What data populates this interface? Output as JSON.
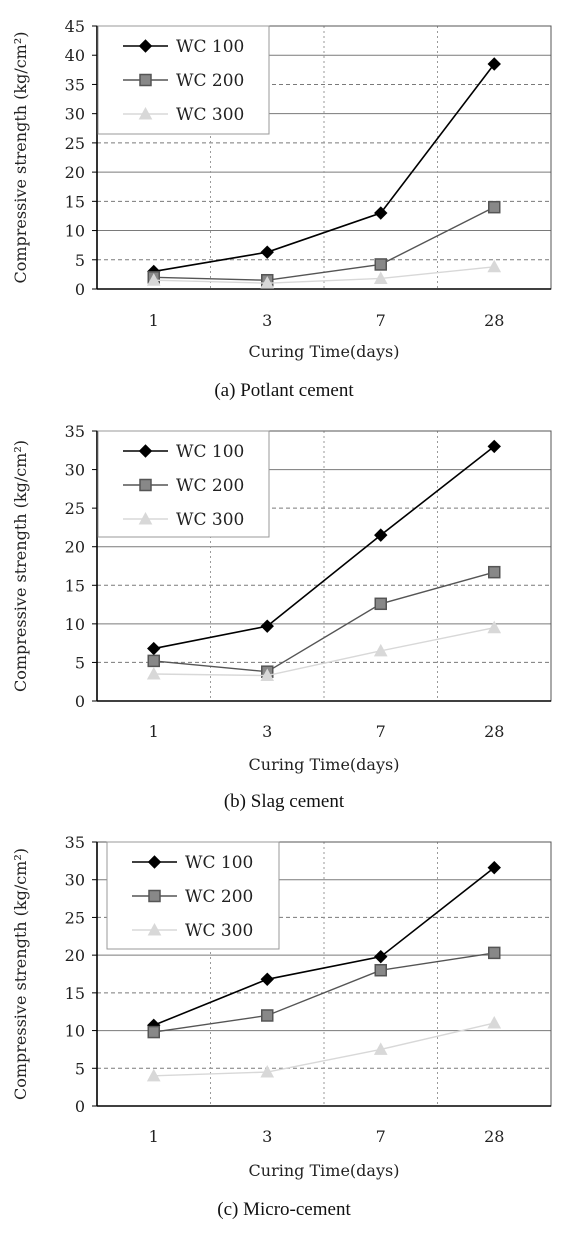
{
  "chart_data": [
    {
      "type": "line",
      "caption": "(a) Potlant cement",
      "xlabel": "Curing Time(days)",
      "ylabel": "Compressive strength (kg/cm²)",
      "categories": [
        "1",
        "3",
        "7",
        "28"
      ],
      "ylim": [
        0,
        45
      ],
      "yticks": [
        0,
        5,
        10,
        15,
        20,
        25,
        30,
        35,
        40,
        45
      ],
      "grid": true,
      "legend_position": "top-left",
      "series": [
        {
          "name": "WC 100",
          "marker": "diamond",
          "color": "#000000",
          "values": [
            3,
            6.3,
            13,
            38.5
          ]
        },
        {
          "name": "WC 200",
          "marker": "square",
          "color": "#555555",
          "values": [
            2,
            1.5,
            4.2,
            14
          ]
        },
        {
          "name": "WC 300",
          "marker": "triangle",
          "color": "#d8d8d8",
          "values": [
            1.5,
            1,
            1.8,
            3.8
          ]
        }
      ]
    },
    {
      "type": "line",
      "caption": "(b) Slag cement",
      "xlabel": "Curing Time(days)",
      "ylabel": "Compressive strength (kg/cm²)",
      "categories": [
        "1",
        "3",
        "7",
        "28"
      ],
      "ylim": [
        0,
        35
      ],
      "yticks": [
        0,
        5,
        10,
        15,
        20,
        25,
        30,
        35
      ],
      "grid": true,
      "legend_position": "top-left",
      "series": [
        {
          "name": "WC 100",
          "marker": "diamond",
          "color": "#000000",
          "values": [
            6.8,
            9.7,
            21.5,
            33
          ]
        },
        {
          "name": "WC 200",
          "marker": "square",
          "color": "#555555",
          "values": [
            5.2,
            3.8,
            12.6,
            16.7
          ]
        },
        {
          "name": "WC 300",
          "marker": "triangle",
          "color": "#d8d8d8",
          "values": [
            3.5,
            3.3,
            6.5,
            9.5
          ]
        }
      ]
    },
    {
      "type": "line",
      "caption": "(c) Micro-cement",
      "xlabel": "Curing Time(days)",
      "ylabel": "Compressive strength (kg/cm²)",
      "categories": [
        "1",
        "3",
        "7",
        "28"
      ],
      "ylim": [
        0,
        35
      ],
      "yticks": [
        0,
        5,
        10,
        15,
        20,
        25,
        30,
        35
      ],
      "grid": true,
      "legend_position": "top-left",
      "series": [
        {
          "name": "WC 100",
          "marker": "diamond",
          "color": "#000000",
          "values": [
            10.7,
            16.8,
            19.8,
            31.6
          ]
        },
        {
          "name": "WC 200",
          "marker": "square",
          "color": "#555555",
          "values": [
            9.8,
            12,
            18,
            20.3
          ]
        },
        {
          "name": "WC 300",
          "marker": "triangle",
          "color": "#d8d8d8",
          "values": [
            4,
            4.5,
            7.5,
            11
          ]
        }
      ]
    }
  ]
}
